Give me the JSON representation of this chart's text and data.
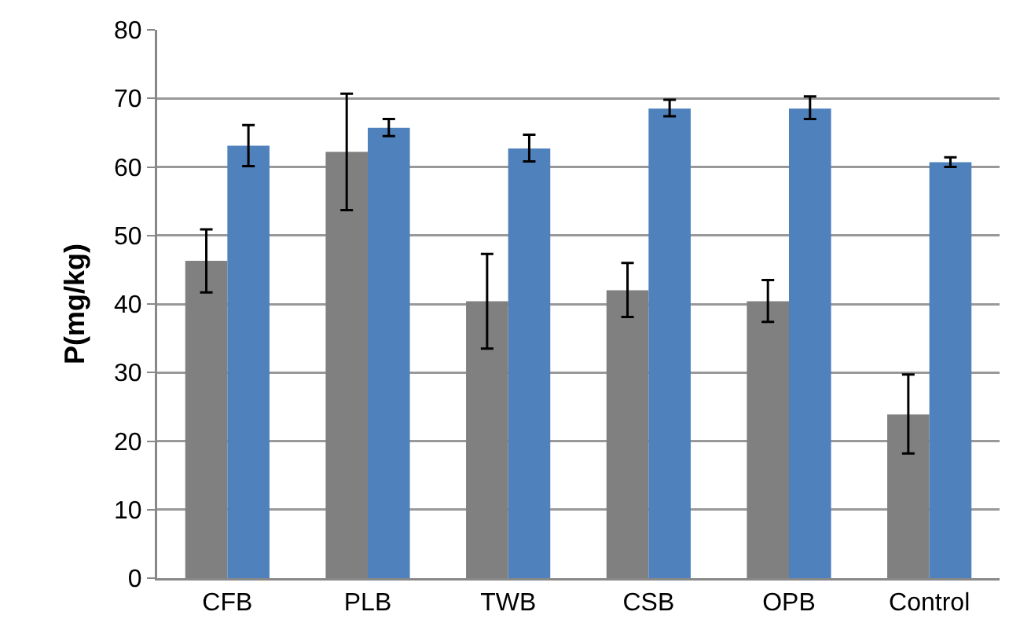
{
  "chart_data": {
    "type": "bar",
    "ylabel": "P(mg/kg)",
    "categories": [
      "CFB",
      "PLB",
      "TWB",
      "CSB",
      "OPB",
      "Control"
    ],
    "series": [
      {
        "color": "#808080",
        "values": [
          46.3,
          62.2,
          40.4,
          42.0,
          40.4,
          23.9
        ],
        "errors": [
          [
            41.7,
            50.9
          ],
          [
            53.7,
            70.7
          ],
          [
            33.5,
            47.3
          ],
          [
            38.1,
            46.0
          ],
          [
            37.4,
            43.5
          ],
          [
            18.2,
            29.7
          ]
        ]
      },
      {
        "color": "#4f81bd",
        "values": [
          63.1,
          65.7,
          62.7,
          68.5,
          68.5,
          60.7
        ],
        "errors": [
          [
            60.1,
            66.1
          ],
          [
            64.5,
            67.0
          ],
          [
            60.8,
            64.7
          ],
          [
            67.4,
            69.8
          ],
          [
            67.0,
            70.3
          ],
          [
            60.0,
            61.4
          ]
        ]
      }
    ],
    "ylim": [
      0,
      80
    ],
    "yticks": [
      0,
      10,
      20,
      30,
      40,
      50,
      60,
      70,
      80
    ],
    "grid": "y"
  }
}
